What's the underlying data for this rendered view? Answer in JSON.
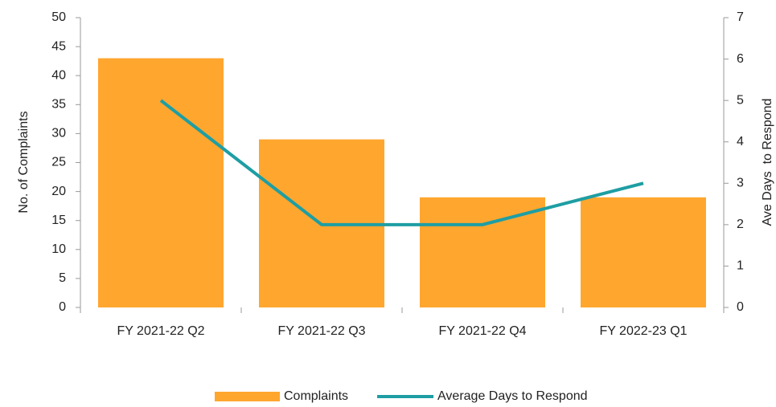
{
  "chart_data": {
    "type": "bar",
    "categories": [
      "FY 2021-22 Q2",
      "FY 2021-22 Q3",
      "FY 2021-22 Q4",
      "FY 2022-23 Q1"
    ],
    "series": [
      {
        "name": "Complaints",
        "type": "bar",
        "color": "#ffa62f",
        "values": [
          43,
          29,
          19,
          19
        ]
      },
      {
        "name": "Average Days to Respond",
        "type": "line",
        "axis": "y2",
        "color": "#1e9ea3",
        "values": [
          5,
          2,
          2,
          3
        ]
      }
    ],
    "ylabel": "No. of Complaints",
    "y2label": "Ave Days  to Respond",
    "ylim": [
      0,
      50
    ],
    "yticks": [
      0,
      5,
      10,
      15,
      20,
      25,
      30,
      35,
      40,
      45,
      50
    ],
    "y2lim": [
      0,
      7
    ],
    "y2ticks": [
      0,
      1,
      2,
      3,
      4,
      5,
      6,
      7
    ],
    "legend": "bottom"
  }
}
